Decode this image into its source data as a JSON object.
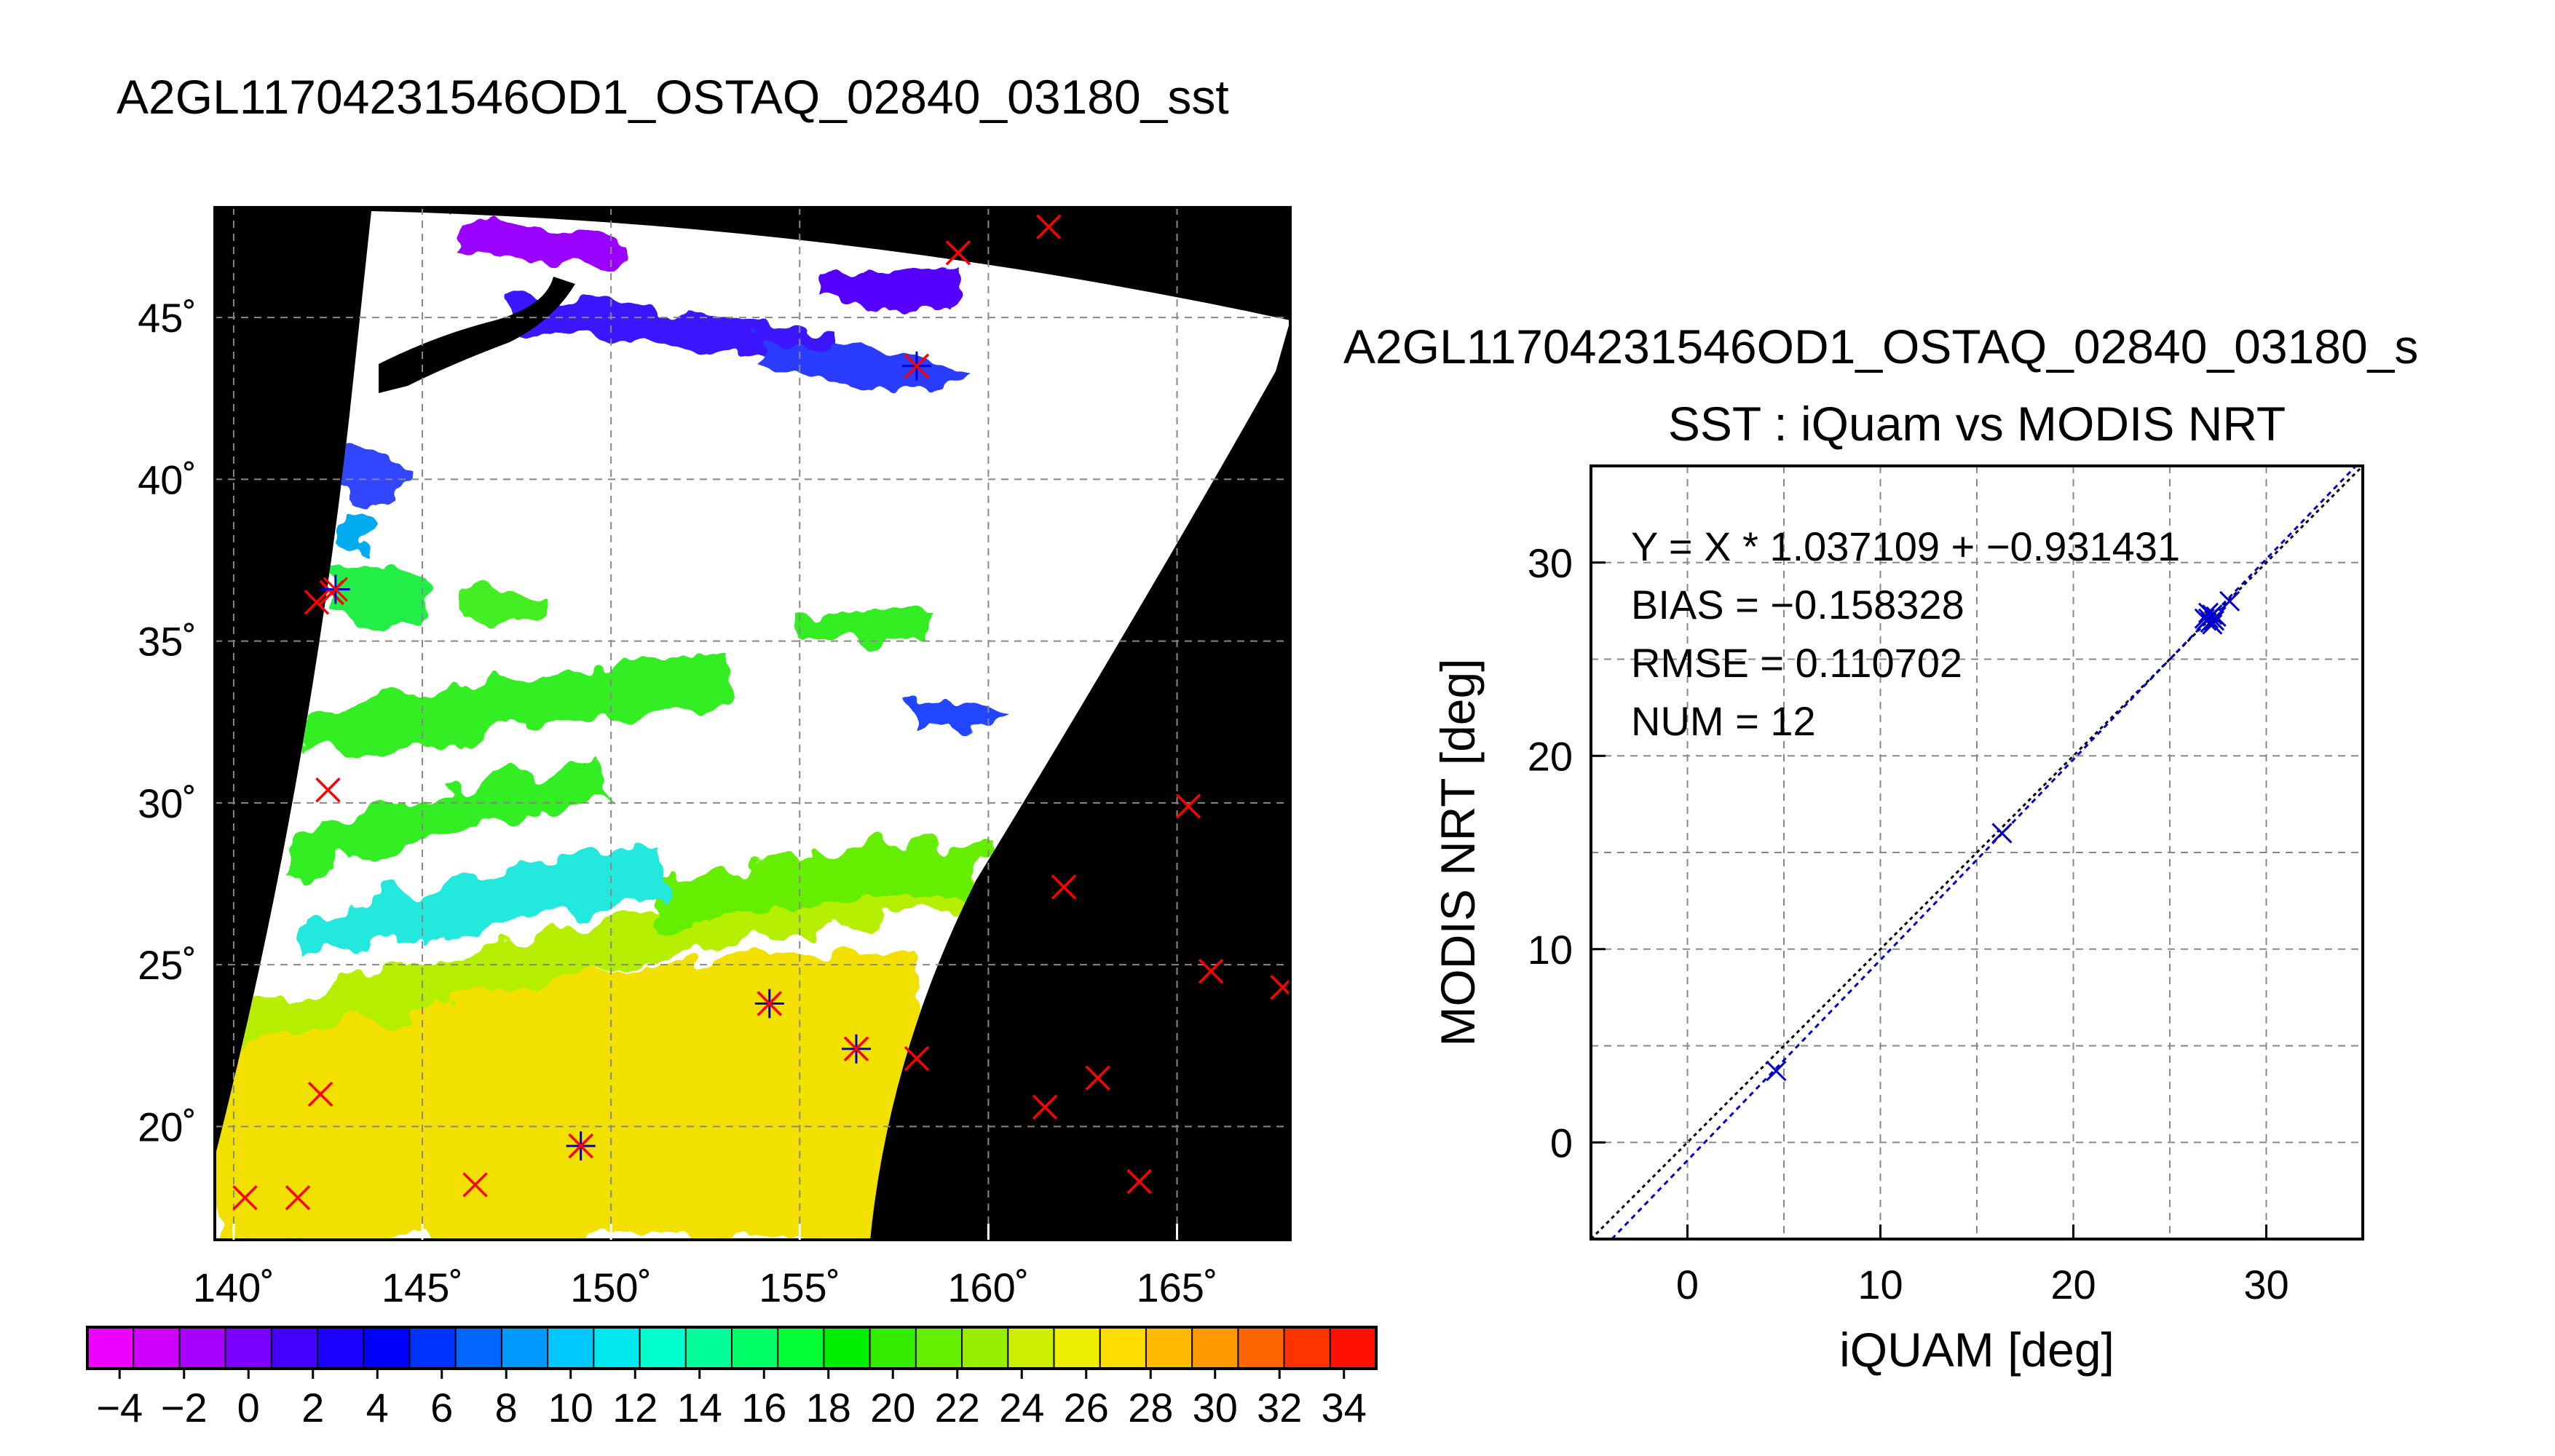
{
  "page": {
    "title": "A2GL11704231546OD1_OSTAQ_02840_03180_sst"
  },
  "map": {
    "lon_ticks": [
      "140˚",
      "145˚",
      "150˚",
      "155˚",
      "160˚",
      "165˚"
    ],
    "lat_ticks": [
      "20˚",
      "25˚",
      "30˚",
      "35˚",
      "40˚",
      "45˚"
    ],
    "marker_color": "#ff0000",
    "match_color": "#0000cc"
  },
  "colorbar": {
    "tick_labels": [
      "−4",
      "−2",
      "0",
      "2",
      "4",
      "6",
      "8",
      "10",
      "12",
      "14",
      "16",
      "18",
      "20",
      "22",
      "24",
      "26",
      "28",
      "30",
      "32",
      "34"
    ],
    "colors": [
      "#ee00ff",
      "#d000ff",
      "#a800ff",
      "#7a00ff",
      "#4400ff",
      "#1a00ff",
      "#0000ff",
      "#0033ff",
      "#0066ff",
      "#0099ff",
      "#00c8ff",
      "#00e8ee",
      "#00ffcc",
      "#00ff99",
      "#00ff66",
      "#00ff33",
      "#00ee00",
      "#33ee00",
      "#66ee00",
      "#99ee00",
      "#ccee00",
      "#eeee00",
      "#ffdd00",
      "#ffbb00",
      "#ff9900",
      "#ff6600",
      "#ff3300",
      "#ff1100"
    ]
  },
  "chart_data": {
    "type": "scatter",
    "title": "SST : iQuam vs MODIS NRT",
    "suptitle": "A2GL11704231546OD1_OSTAQ_02840_03180_s",
    "xlabel": "iQUAM [deg]",
    "ylabel": "MODIS NRT [deg]",
    "xlim": [
      -5,
      35
    ],
    "ylim": [
      -5,
      35
    ],
    "xticks": [
      "0",
      "10",
      "20",
      "30"
    ],
    "yticks": [
      "0",
      "10",
      "20",
      "30"
    ],
    "grid": true,
    "stats": [
      "Y = X * 1.037109 + −0.931431",
      "BIAS = −0.158328",
      "RMSE = 0.110702",
      "NUM = 12"
    ],
    "fit": {
      "slope": 1.037109,
      "intercept": -0.931431
    },
    "points": {
      "x": [
        4.6,
        16.3,
        26.9,
        27.0,
        27.1,
        27.2,
        27.3,
        27.4,
        28.1,
        27.0,
        26.8,
        27.2
      ],
      "y": [
        3.7,
        16.0,
        27.0,
        27.1,
        26.9,
        27.3,
        27.0,
        27.2,
        28.0,
        27.4,
        27.1,
        26.8
      ]
    }
  }
}
